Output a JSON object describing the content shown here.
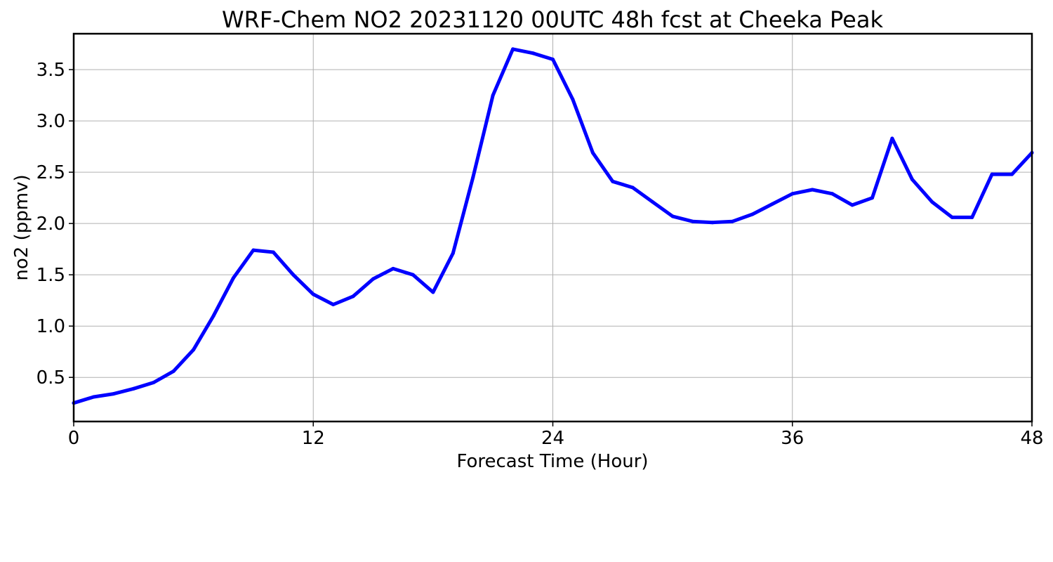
{
  "chart_data": {
    "type": "line",
    "title": "WRF-Chem NO2  20231120 00UTC 48h fcst at Cheeka Peak",
    "xlabel": "Forecast Time (Hour)",
    "ylabel": "no2  (ppmv)",
    "xlim": [
      0,
      48
    ],
    "ylim": [
      0.07,
      3.85
    ],
    "xticks": [
      0,
      12,
      24,
      36,
      48
    ],
    "xtick_labels": [
      "0",
      "12",
      "24",
      "36",
      "48"
    ],
    "yticks": [
      0.5,
      1.0,
      1.5,
      2.0,
      2.5,
      3.0,
      3.5
    ],
    "ytick_labels": [
      "0.5",
      "1.0",
      "1.5",
      "2.0",
      "2.5",
      "3.0",
      "3.5"
    ],
    "grid": true,
    "legend": "none",
    "series": [
      {
        "color": "#0000ff",
        "x": [
          0,
          1,
          2,
          3,
          4,
          5,
          6,
          7,
          8,
          9,
          10,
          11,
          12,
          13,
          14,
          15,
          16,
          17,
          18,
          19,
          20,
          21,
          22,
          23,
          24,
          25,
          26,
          27,
          28,
          29,
          30,
          31,
          32,
          33,
          34,
          35,
          36,
          37,
          38,
          39,
          40,
          41,
          42,
          43,
          44,
          45,
          46,
          47,
          48
        ],
        "values": [
          0.25,
          0.31,
          0.34,
          0.39,
          0.45,
          0.56,
          0.77,
          1.1,
          1.47,
          1.74,
          1.72,
          1.5,
          1.31,
          1.21,
          1.29,
          1.46,
          1.56,
          1.5,
          1.33,
          1.71,
          2.45,
          3.25,
          3.7,
          3.66,
          3.6,
          3.21,
          2.69,
          2.41,
          2.35,
          2.21,
          2.07,
          2.02,
          2.01,
          2.02,
          2.09,
          2.19,
          2.29,
          2.33,
          2.29,
          2.18,
          2.25,
          2.83,
          2.43,
          2.21,
          2.06,
          2.06,
          2.48,
          2.48,
          2.69
        ]
      }
    ]
  }
}
